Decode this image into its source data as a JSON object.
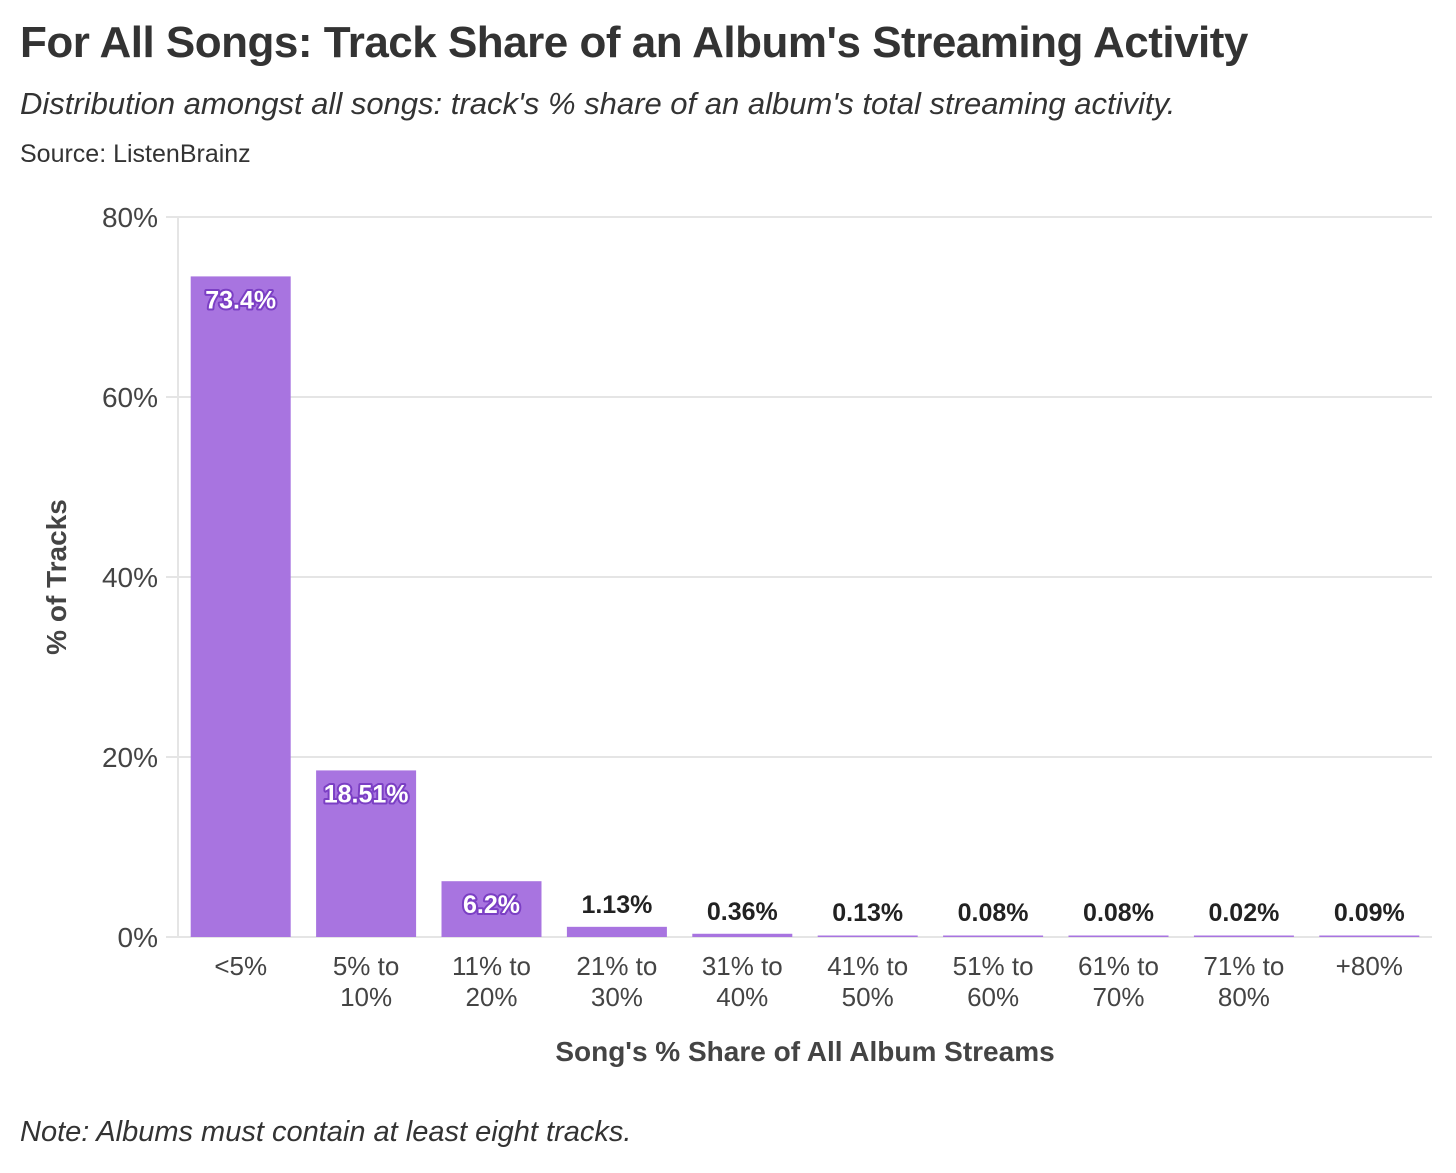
{
  "header": {
    "title": "For All Songs: Track Share of an Album's Streaming Activity",
    "subtitle": "Distribution amongst all songs: track's % share of an album's total streaming activity.",
    "source": "Source: ListenBrainz"
  },
  "footer": {
    "note": "Note: Albums must contain at least eight tracks."
  },
  "colors": {
    "bar": "#a874e0",
    "gridline": "#e5e5e5",
    "axis_text": "#444444",
    "inner_label": "#ffffff",
    "inner_label_halo": "#7b3fc4",
    "outer_label": "#222222"
  },
  "chart_data": {
    "type": "bar",
    "xlabel": "Song's % Share of All Album Streams",
    "ylabel": "% of Tracks",
    "ylim": [
      0,
      80
    ],
    "yticks": [
      "0%",
      "20%",
      "40%",
      "60%",
      "80%"
    ],
    "ytick_values": [
      0,
      20,
      40,
      60,
      80
    ],
    "grid": true,
    "categories": [
      [
        "<5%"
      ],
      [
        "5% to",
        "10%"
      ],
      [
        "11% to",
        "20%"
      ],
      [
        "21% to",
        "30%"
      ],
      [
        "31% to",
        "40%"
      ],
      [
        "41% to",
        "50%"
      ],
      [
        "51% to",
        "60%"
      ],
      [
        "61% to",
        "70%"
      ],
      [
        "71% to",
        "80%"
      ],
      [
        "+80%"
      ]
    ],
    "values": [
      73.4,
      18.51,
      6.2,
      1.13,
      0.36,
      0.13,
      0.08,
      0.08,
      0.02,
      0.09
    ],
    "data_labels": [
      "73.4%",
      "18.51%",
      "6.2%",
      "1.13%",
      "0.36%",
      "0.13%",
      "0.08%",
      "0.08%",
      "0.02%",
      "0.09%"
    ]
  }
}
